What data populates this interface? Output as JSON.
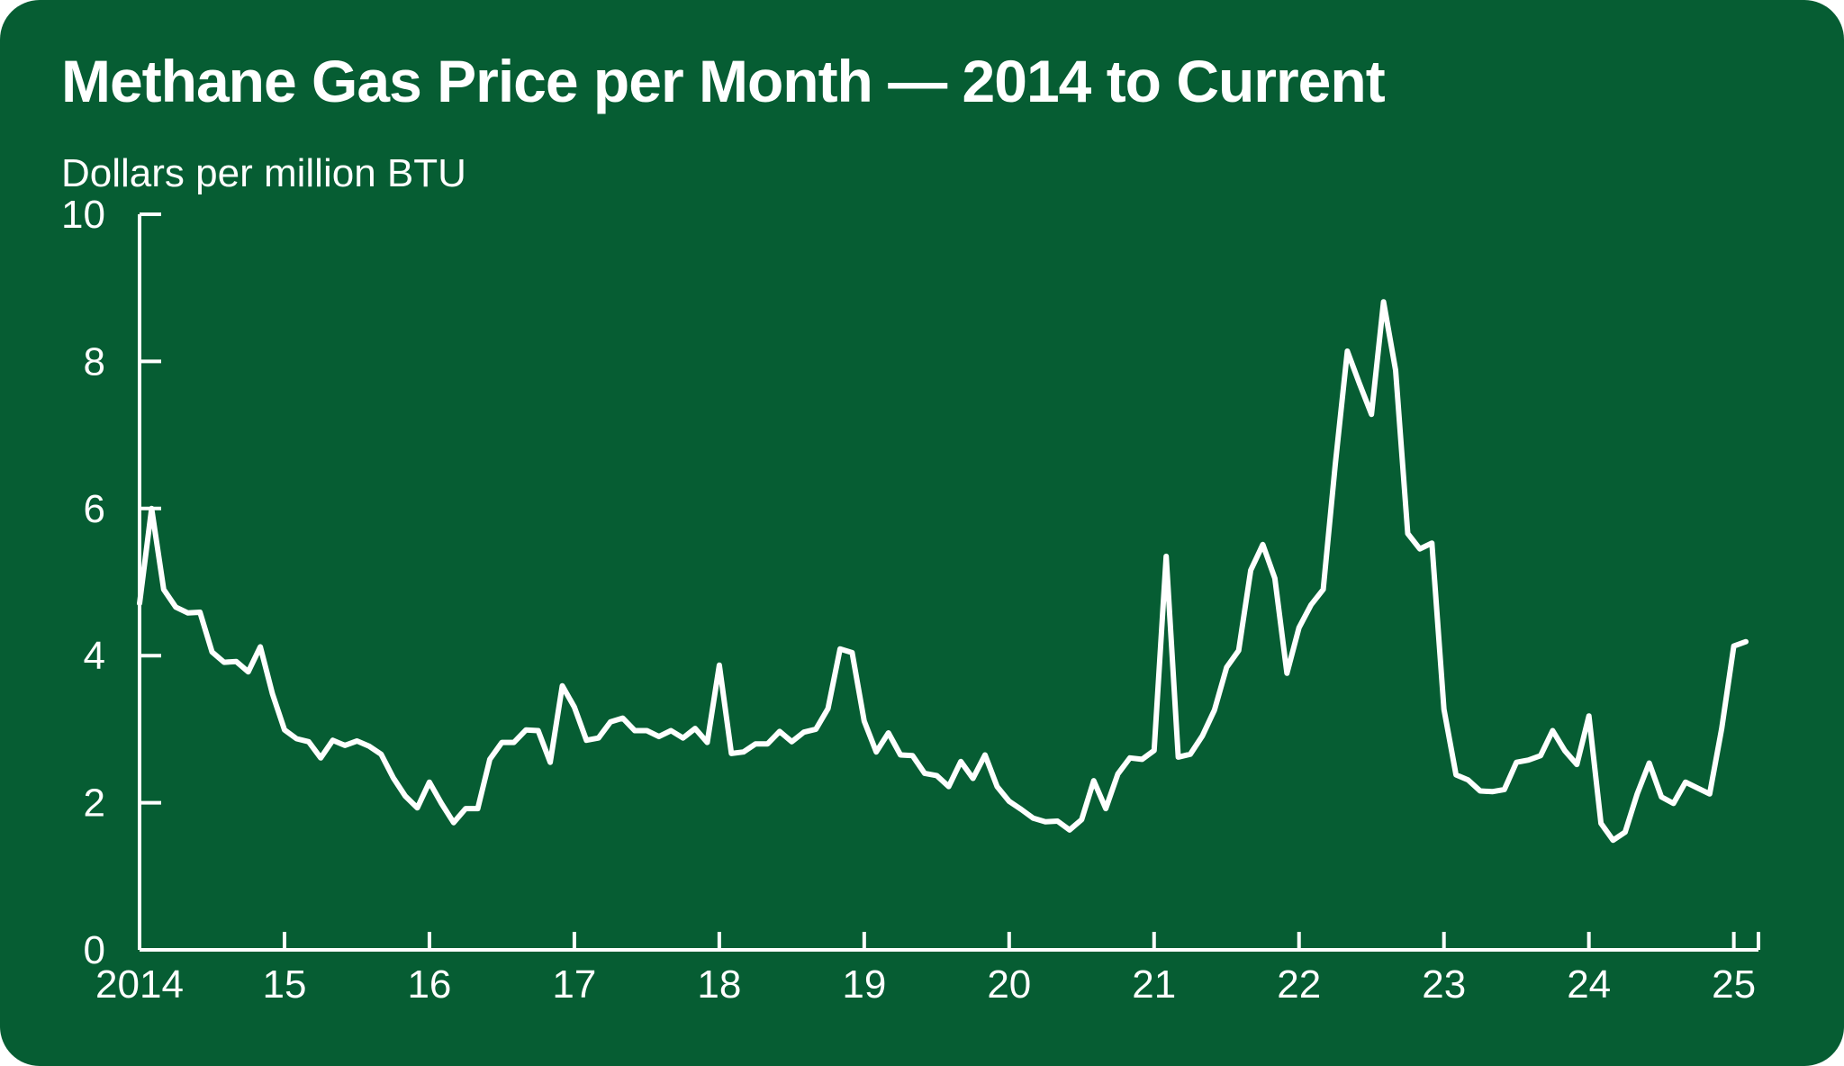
{
  "colors": {
    "background": "#065d33",
    "foreground": "#ffffff"
  },
  "chart_data": {
    "type": "line",
    "title": "Methane Gas Price per Month — 2014 to Current",
    "ylabel": "Dollars per million BTU",
    "xlabel": "",
    "ylim": [
      0,
      10
    ],
    "yticks": [
      0,
      2,
      4,
      6,
      8,
      10
    ],
    "xlim": [
      2014,
      2025.17
    ],
    "xticks": [
      {
        "value": 2014,
        "label": "2014"
      },
      {
        "value": 2015,
        "label": "15"
      },
      {
        "value": 2016,
        "label": "16"
      },
      {
        "value": 2017,
        "label": "17"
      },
      {
        "value": 2018,
        "label": "18"
      },
      {
        "value": 2019,
        "label": "19"
      },
      {
        "value": 2020,
        "label": "20"
      },
      {
        "value": 2021,
        "label": "21"
      },
      {
        "value": 2022,
        "label": "22"
      },
      {
        "value": 2023,
        "label": "23"
      },
      {
        "value": 2024,
        "label": "24"
      },
      {
        "value": 2025,
        "label": "25"
      }
    ],
    "grid": false,
    "series": [
      {
        "start": "2014-01",
        "frequency": "monthly",
        "values": [
          4.71,
          6.0,
          4.9,
          4.66,
          4.58,
          4.59,
          4.05,
          3.91,
          3.92,
          3.78,
          4.12,
          3.48,
          2.99,
          2.87,
          2.83,
          2.61,
          2.85,
          2.78,
          2.84,
          2.77,
          2.66,
          2.34,
          2.09,
          1.93,
          2.28,
          1.99,
          1.73,
          1.92,
          1.92,
          2.59,
          2.82,
          2.82,
          2.99,
          2.98,
          2.55,
          3.59,
          3.3,
          2.85,
          2.88,
          3.1,
          3.15,
          2.98,
          2.98,
          2.9,
          2.98,
          2.88,
          3.01,
          2.82,
          3.87,
          2.67,
          2.69,
          2.8,
          2.8,
          2.97,
          2.83,
          2.96,
          3.0,
          3.28,
          4.09,
          4.04,
          3.11,
          2.69,
          2.95,
          2.65,
          2.64,
          2.4,
          2.37,
          2.22,
          2.56,
          2.33,
          2.65,
          2.22,
          2.02,
          1.91,
          1.79,
          1.74,
          1.75,
          1.63,
          1.77,
          2.3,
          1.92,
          2.39,
          2.61,
          2.59,
          2.71,
          5.35,
          2.62,
          2.66,
          2.91,
          3.26,
          3.84,
          4.07,
          5.16,
          5.51,
          5.05,
          3.76,
          4.38,
          4.69,
          4.9,
          6.6,
          8.14,
          7.7,
          7.28,
          8.81,
          7.88,
          5.66,
          5.45,
          5.53,
          3.27,
          2.38,
          2.31,
          2.16,
          2.15,
          2.18,
          2.55,
          2.58,
          2.64,
          2.98,
          2.71,
          2.52,
          3.18,
          1.72,
          1.49,
          1.6,
          2.12,
          2.54,
          2.08,
          1.99,
          2.28,
          2.2,
          2.12,
          3.01,
          4.13,
          4.19
        ]
      }
    ]
  }
}
